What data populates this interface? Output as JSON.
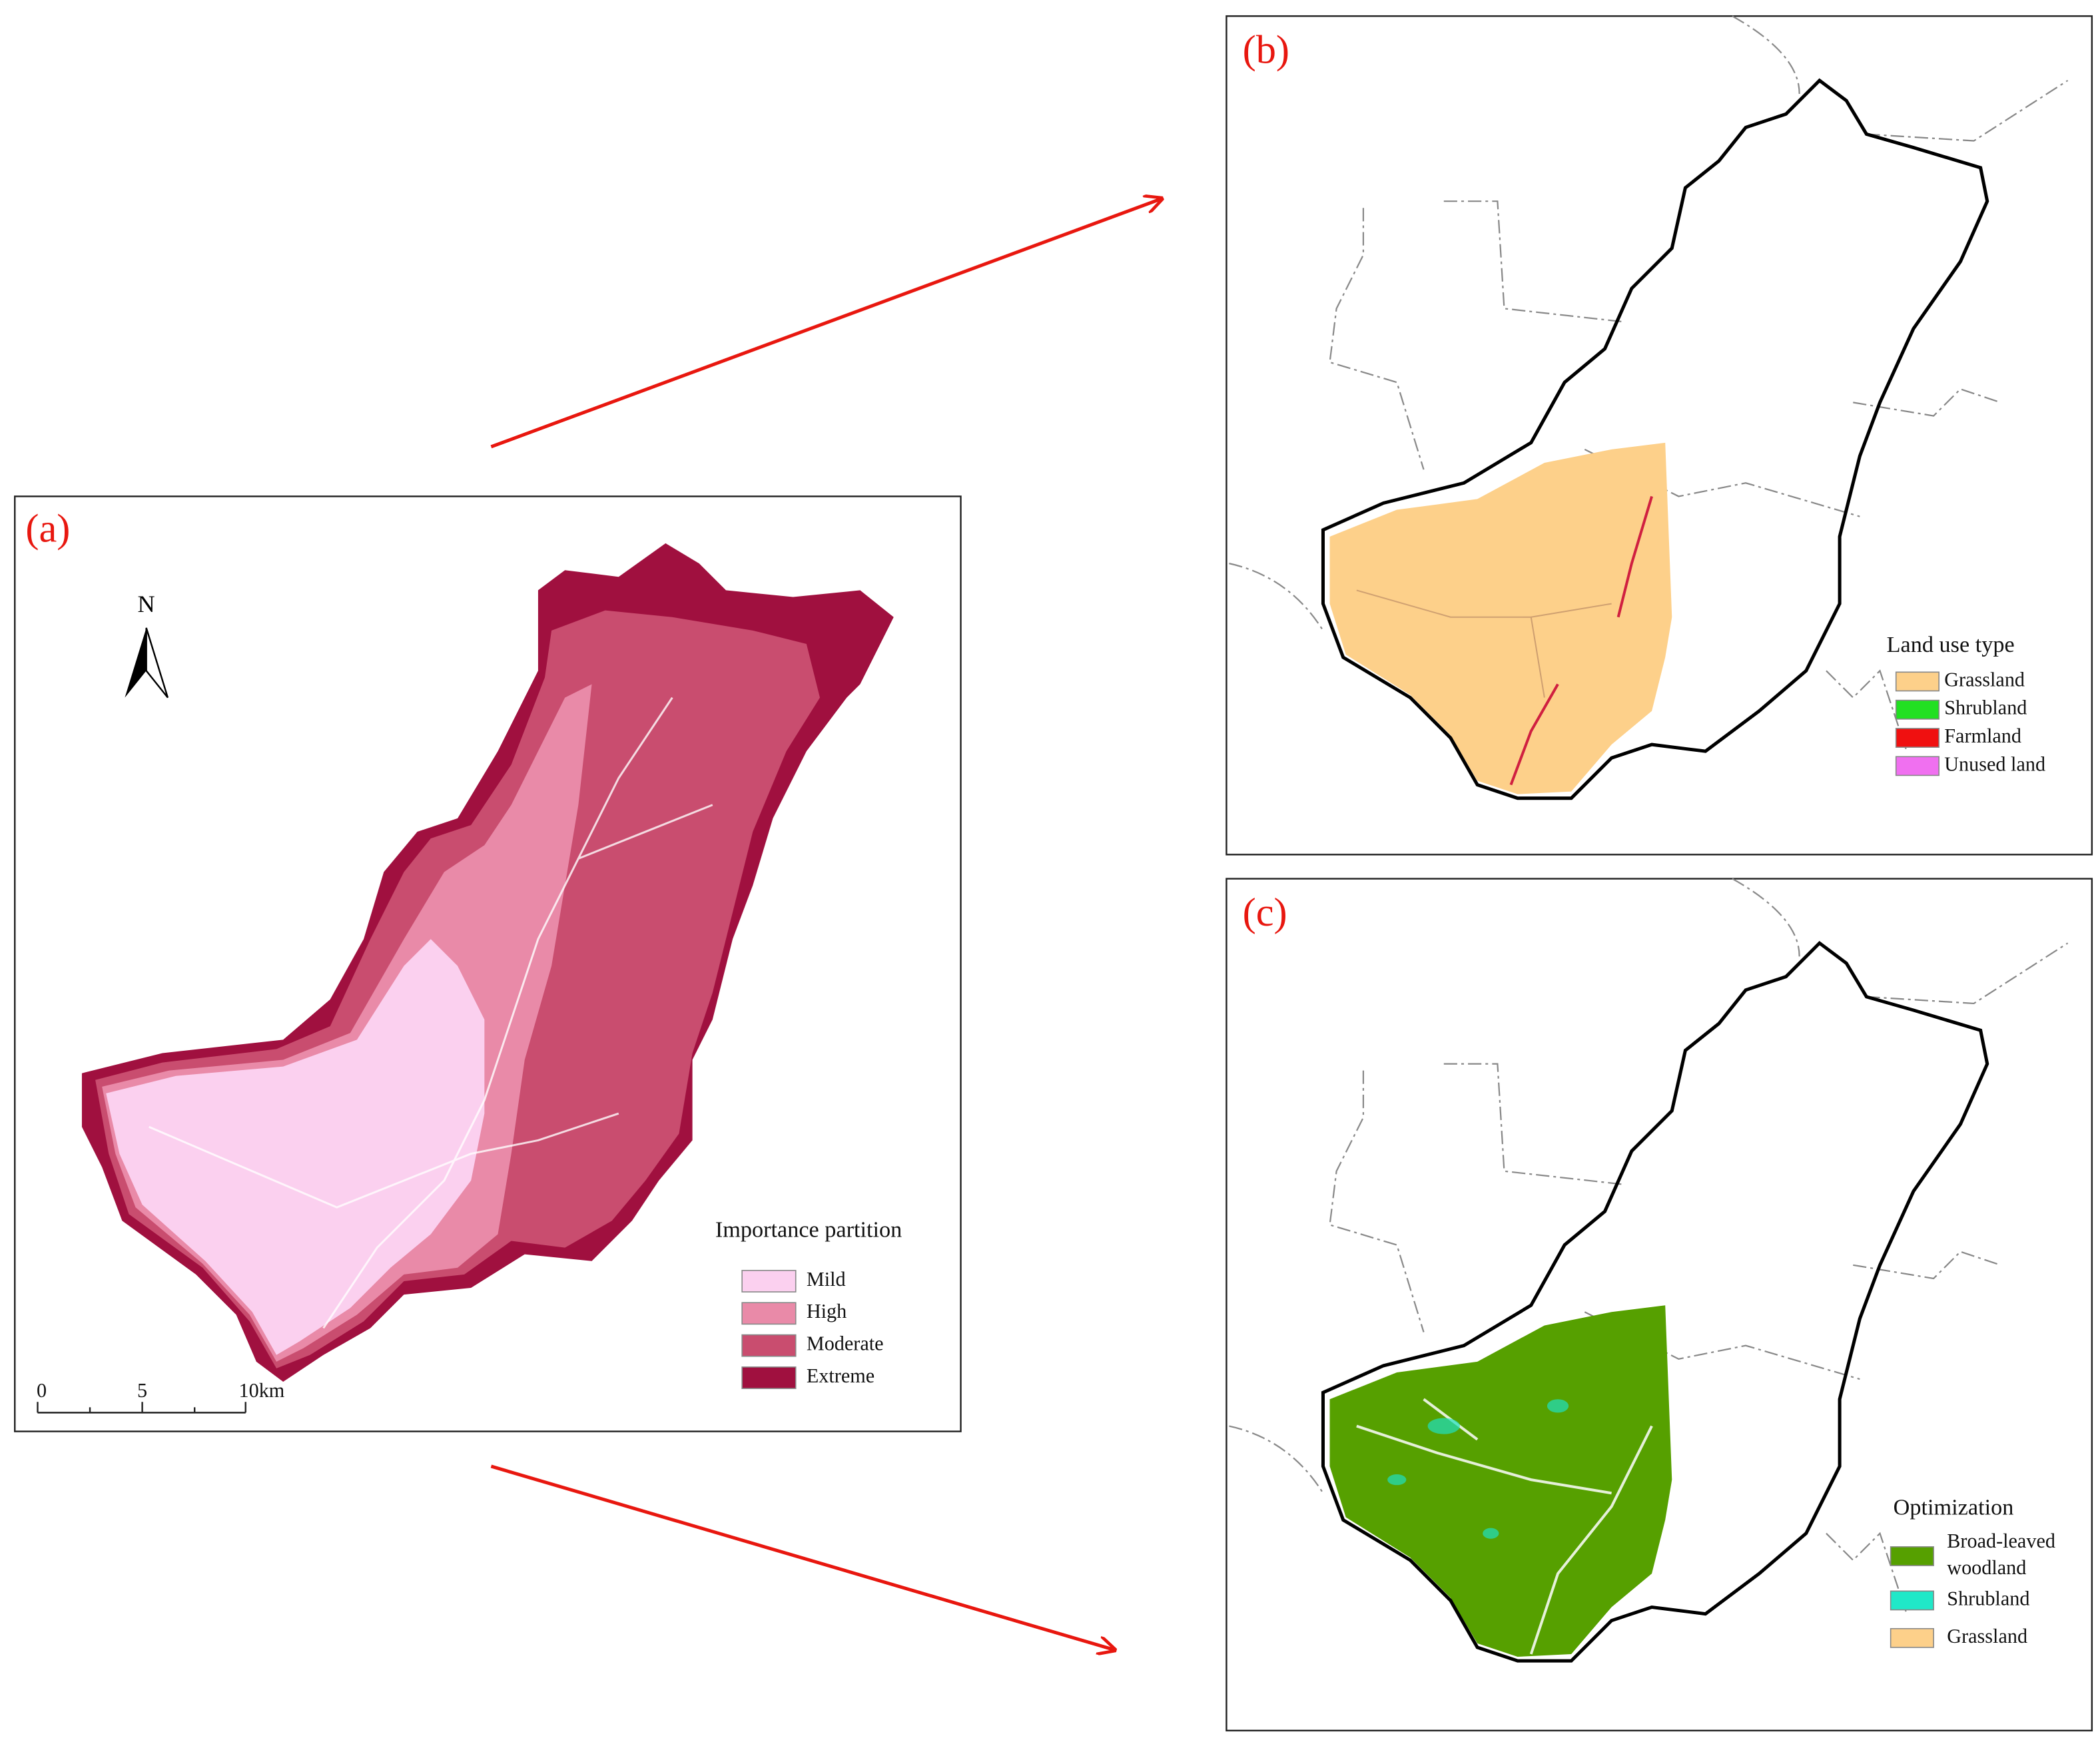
{
  "panels": [
    {
      "label": "(a)",
      "north": "N",
      "scale_bar": [
        "0",
        "5",
        "10km"
      ],
      "legend": {
        "title": "Importance partition",
        "items": [
          {
            "name": "Mild",
            "color": "#fbd0ef"
          },
          {
            "name": "High",
            "color": "#e98aa8"
          },
          {
            "name": "Moderate",
            "color": "#c94d6f"
          },
          {
            "name": "Extreme",
            "color": "#a0103f"
          }
        ]
      }
    },
    {
      "label": "(b)",
      "legend": {
        "title": "Land use type",
        "items": [
          {
            "name": "Grassland",
            "color": "#fdd08a"
          },
          {
            "name": "Shrubland",
            "color": "#22e022"
          },
          {
            "name": "Farmland",
            "color": "#f01010"
          },
          {
            "name": "Unused land",
            "color": "#f070f0"
          }
        ]
      }
    },
    {
      "label": "(c)",
      "legend": {
        "title": "Optimization",
        "items": [
          {
            "name": "Broad-leaved woodland",
            "color": "#56a000"
          },
          {
            "name": "Shrubland",
            "color": "#20e8c8"
          },
          {
            "name": "Grassland",
            "color": "#fdd08a"
          }
        ]
      }
    }
  ]
}
